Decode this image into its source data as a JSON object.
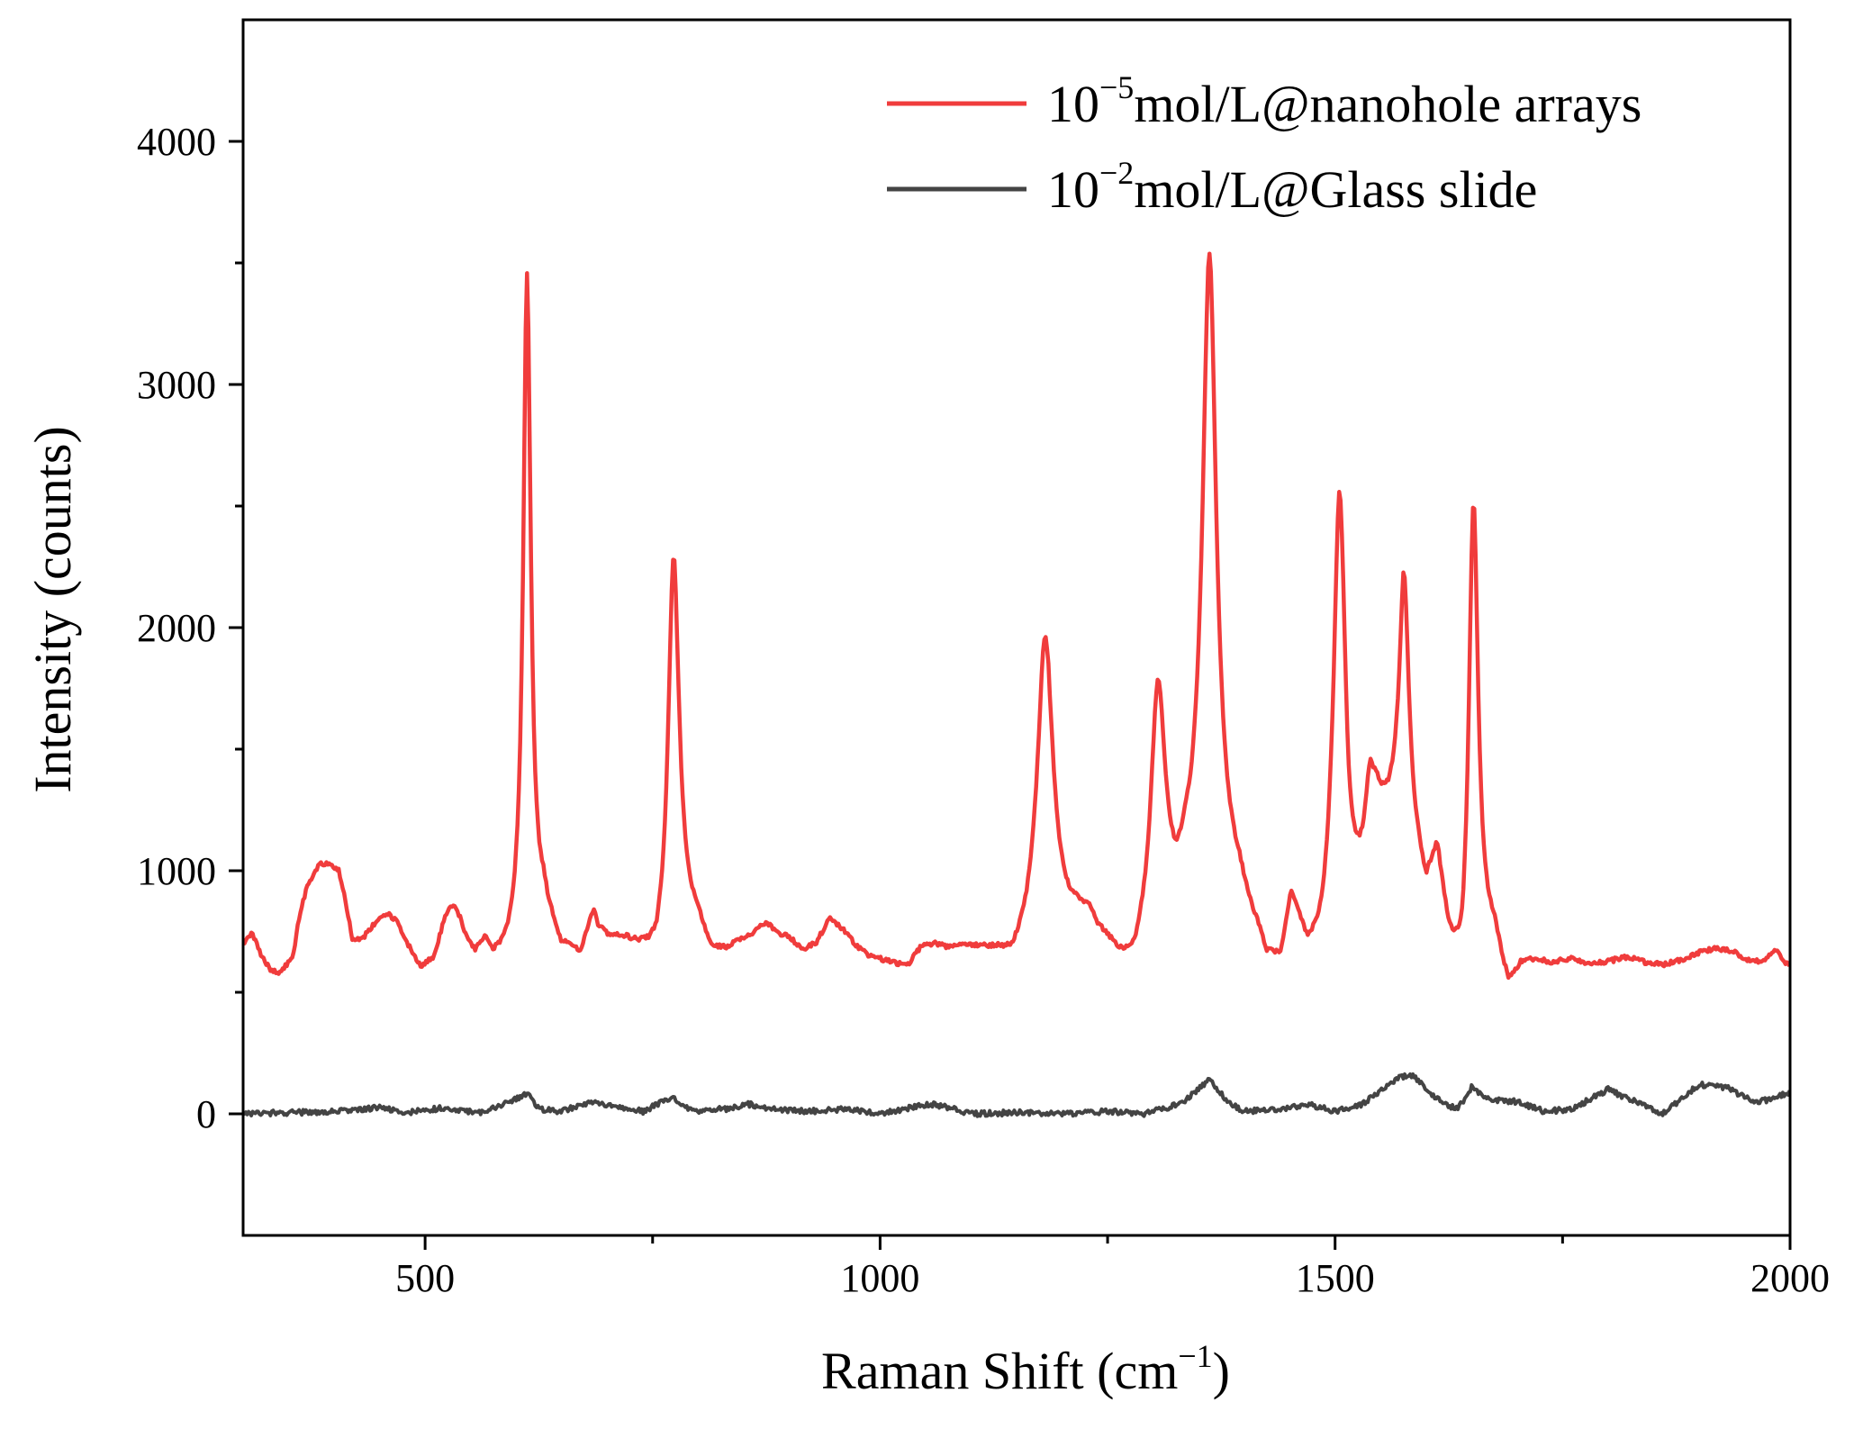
{
  "chart_data": {
    "type": "line",
    "title": "",
    "xlabel": "Raman Shift (cm",
    "xlabel_sup": "−1",
    "xlabel_end": ")",
    "ylabel": "Intensity (counts)",
    "xlim": [
      300,
      2000
    ],
    "ylim": [
      -500,
      4500
    ],
    "x_ticks": [
      500,
      1000,
      1500,
      2000
    ],
    "x_tick_labels": [
      "500",
      "1000",
      "1500",
      "2000"
    ],
    "x_minor_ticks": [
      750,
      1250,
      1750
    ],
    "y_ticks": [
      0,
      1000,
      2000,
      3000,
      4000
    ],
    "y_tick_labels": [
      "0",
      "1000",
      "2000",
      "3000",
      "4000"
    ],
    "y_minor_ticks": [
      500,
      1500,
      2500,
      3500
    ],
    "grid": false,
    "legend_position": "top-right",
    "series": [
      {
        "name": "10−5mol/L@nanohole arrays",
        "legend_base": "10",
        "legend_sup": "−5",
        "legend_rest": "mol/L@nanohole arrays",
        "color": "#f03c3c",
        "baseline": [
          [
            300,
            700
          ],
          [
            310,
            740
          ],
          [
            320,
            650
          ],
          [
            330,
            590
          ],
          [
            340,
            580
          ],
          [
            355,
            640
          ],
          [
            360,
            780
          ],
          [
            370,
            930
          ],
          [
            385,
            1030
          ],
          [
            395,
            1020
          ],
          [
            405,
            1000
          ],
          [
            410,
            920
          ],
          [
            420,
            720
          ],
          [
            430,
            710
          ],
          [
            440,
            760
          ],
          [
            450,
            800
          ],
          [
            460,
            820
          ],
          [
            470,
            780
          ],
          [
            480,
            700
          ],
          [
            495,
            600
          ],
          [
            510,
            640
          ],
          [
            520,
            780
          ],
          [
            528,
            850
          ],
          [
            535,
            830
          ],
          [
            545,
            720
          ],
          [
            555,
            650
          ],
          [
            565,
            700
          ],
          [
            575,
            630
          ],
          [
            590,
            640
          ],
          [
            605,
            700
          ],
          [
            620,
            760
          ],
          [
            630,
            820
          ],
          [
            650,
            660
          ],
          [
            660,
            670
          ],
          [
            670,
            640
          ],
          [
            685,
            820
          ],
          [
            690,
            760
          ],
          [
            700,
            720
          ],
          [
            720,
            700
          ],
          [
            740,
            650
          ],
          [
            755,
            600
          ],
          [
            770,
            700
          ],
          [
            780,
            800
          ],
          [
            800,
            760
          ],
          [
            815,
            650
          ],
          [
            830,
            660
          ],
          [
            845,
            700
          ],
          [
            860,
            730
          ],
          [
            875,
            780
          ],
          [
            885,
            740
          ],
          [
            900,
            720
          ],
          [
            915,
            670
          ],
          [
            930,
            700
          ],
          [
            945,
            800
          ],
          [
            960,
            750
          ],
          [
            975,
            680
          ],
          [
            990,
            640
          ],
          [
            1010,
            620
          ],
          [
            1030,
            600
          ],
          [
            1045,
            680
          ],
          [
            1060,
            690
          ],
          [
            1075,
            670
          ],
          [
            1090,
            680
          ],
          [
            1110,
            670
          ],
          [
            1130,
            650
          ],
          [
            1145,
            620
          ],
          [
            1160,
            700
          ],
          [
            1175,
            840
          ],
          [
            1180,
            920
          ],
          [
            1185,
            950
          ],
          [
            1195,
            850
          ],
          [
            1205,
            800
          ],
          [
            1230,
            800
          ],
          [
            1240,
            720
          ],
          [
            1250,
            680
          ],
          [
            1265,
            600
          ],
          [
            1280,
            580
          ],
          [
            1295,
            700
          ],
          [
            1310,
            860
          ],
          [
            1325,
            820
          ],
          [
            1335,
            930
          ],
          [
            1355,
            1000
          ],
          [
            1375,
            950
          ],
          [
            1395,
            880
          ],
          [
            1405,
            780
          ],
          [
            1415,
            700
          ],
          [
            1425,
            600
          ],
          [
            1440,
            600
          ],
          [
            1452,
            850
          ],
          [
            1460,
            750
          ],
          [
            1470,
            620
          ],
          [
            1485,
            620
          ],
          [
            1495,
            700
          ],
          [
            1505,
            750
          ],
          [
            1515,
            700
          ],
          [
            1530,
            900
          ],
          [
            1545,
            1200
          ],
          [
            1560,
            1220
          ],
          [
            1575,
            1350
          ],
          [
            1585,
            1120
          ],
          [
            1600,
            900
          ],
          [
            1612,
            1050
          ],
          [
            1625,
            680
          ],
          [
            1640,
            470
          ],
          [
            1655,
            700
          ],
          [
            1675,
            700
          ],
          [
            1690,
            510
          ],
          [
            1705,
            600
          ],
          [
            1720,
            620
          ],
          [
            1740,
            610
          ],
          [
            1760,
            630
          ],
          [
            1780,
            610
          ],
          [
            1800,
            620
          ],
          [
            1820,
            640
          ],
          [
            1840,
            620
          ],
          [
            1860,
            610
          ],
          [
            1880,
            630
          ],
          [
            1900,
            660
          ],
          [
            1920,
            680
          ],
          [
            1940,
            660
          ],
          [
            1960,
            620
          ],
          [
            1975,
            640
          ],
          [
            1985,
            670
          ],
          [
            1995,
            620
          ],
          [
            2000,
            610
          ]
        ],
        "peaks": [
          {
            "center": 612,
            "height": 2720,
            "width": 5
          },
          {
            "center": 773,
            "height": 1560,
            "width": 7
          },
          {
            "center": 1181,
            "height": 1020,
            "width": 10
          },
          {
            "center": 1305,
            "height": 900,
            "width": 9
          },
          {
            "center": 1362,
            "height": 2520,
            "width": 9
          },
          {
            "center": 1505,
            "height": 1780,
            "width": 8
          },
          {
            "center": 1538,
            "height": 250,
            "width": 6
          },
          {
            "center": 1576,
            "height": 850,
            "width": 6
          },
          {
            "center": 1652,
            "height": 1850,
            "width": 6
          }
        ]
      },
      {
        "name": "10−2mol/L@Glass slide",
        "legend_base": "10",
        "legend_sup": "−2",
        "legend_rest": "mol/L@Glass slide",
        "color": "#444444",
        "baseline": [
          [
            300,
            0
          ],
          [
            350,
            5
          ],
          [
            400,
            10
          ],
          [
            450,
            25
          ],
          [
            480,
            5
          ],
          [
            520,
            25
          ],
          [
            560,
            5
          ],
          [
            595,
            50
          ],
          [
            612,
            85
          ],
          [
            625,
            20
          ],
          [
            650,
            10
          ],
          [
            680,
            45
          ],
          [
            700,
            40
          ],
          [
            740,
            10
          ],
          [
            772,
            70
          ],
          [
            795,
            10
          ],
          [
            830,
            20
          ],
          [
            855,
            40
          ],
          [
            880,
            20
          ],
          [
            920,
            10
          ],
          [
            960,
            20
          ],
          [
            1000,
            0
          ],
          [
            1040,
            30
          ],
          [
            1060,
            40
          ],
          [
            1100,
            0
          ],
          [
            1150,
            5
          ],
          [
            1200,
            0
          ],
          [
            1250,
            10
          ],
          [
            1290,
            0
          ],
          [
            1330,
            40
          ],
          [
            1362,
            140
          ],
          [
            1385,
            40
          ],
          [
            1400,
            10
          ],
          [
            1440,
            20
          ],
          [
            1470,
            40
          ],
          [
            1500,
            10
          ],
          [
            1530,
            40
          ],
          [
            1570,
            150
          ],
          [
            1585,
            160
          ],
          [
            1605,
            80
          ],
          [
            1620,
            40
          ],
          [
            1635,
            20
          ],
          [
            1650,
            110
          ],
          [
            1670,
            60
          ],
          [
            1700,
            50
          ],
          [
            1730,
            10
          ],
          [
            1760,
            20
          ],
          [
            1800,
            100
          ],
          [
            1830,
            50
          ],
          [
            1860,
            0
          ],
          [
            1880,
            60
          ],
          [
            1900,
            120
          ],
          [
            1930,
            110
          ],
          [
            1960,
            50
          ],
          [
            1980,
            60
          ],
          [
            2000,
            90
          ]
        ]
      }
    ]
  }
}
